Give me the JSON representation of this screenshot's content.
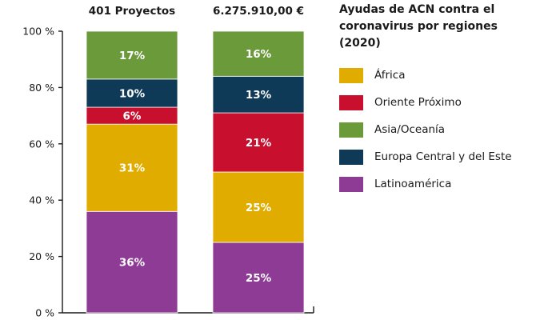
{
  "chart_data": {
    "type": "bar",
    "stacked": true,
    "categories": [
      "401 Proyectos",
      "6.275.910,00 €"
    ],
    "ytick_labels": [
      "0 %",
      "20 %",
      "40 %",
      "60 %",
      "80 %",
      "100 %"
    ],
    "ylim": [
      0,
      100
    ],
    "legend": {
      "title": "Ayudas de ACN contra el coronavirus por regiones (2020)",
      "placement": "right"
    },
    "series": [
      {
        "name": "Latinoamérica",
        "color": "#8e3b96",
        "values": [
          36,
          25
        ],
        "labels": [
          "36%",
          "25%"
        ]
      },
      {
        "name": "África",
        "color": "#e0ac00",
        "values": [
          31,
          25
        ],
        "labels": [
          "31%",
          "25%"
        ]
      },
      {
        "name": "Oriente Próximo",
        "color": "#c8102e",
        "values": [
          6,
          21
        ],
        "labels": [
          "6%",
          "21%"
        ]
      },
      {
        "name": "Europa Central y del Este",
        "color": "#0f3a57",
        "values": [
          10,
          13
        ],
        "labels": [
          "10%",
          "13%"
        ]
      },
      {
        "name": "Asia/Oceanía",
        "color": "#6a9a3a",
        "values": [
          17,
          16
        ],
        "labels": [
          "17%",
          "16%"
        ]
      }
    ],
    "legend_order": [
      "África",
      "Oriente Próximo",
      "Asia/Oceanía",
      "Europa Central y del Este",
      "Latinoamérica"
    ]
  }
}
